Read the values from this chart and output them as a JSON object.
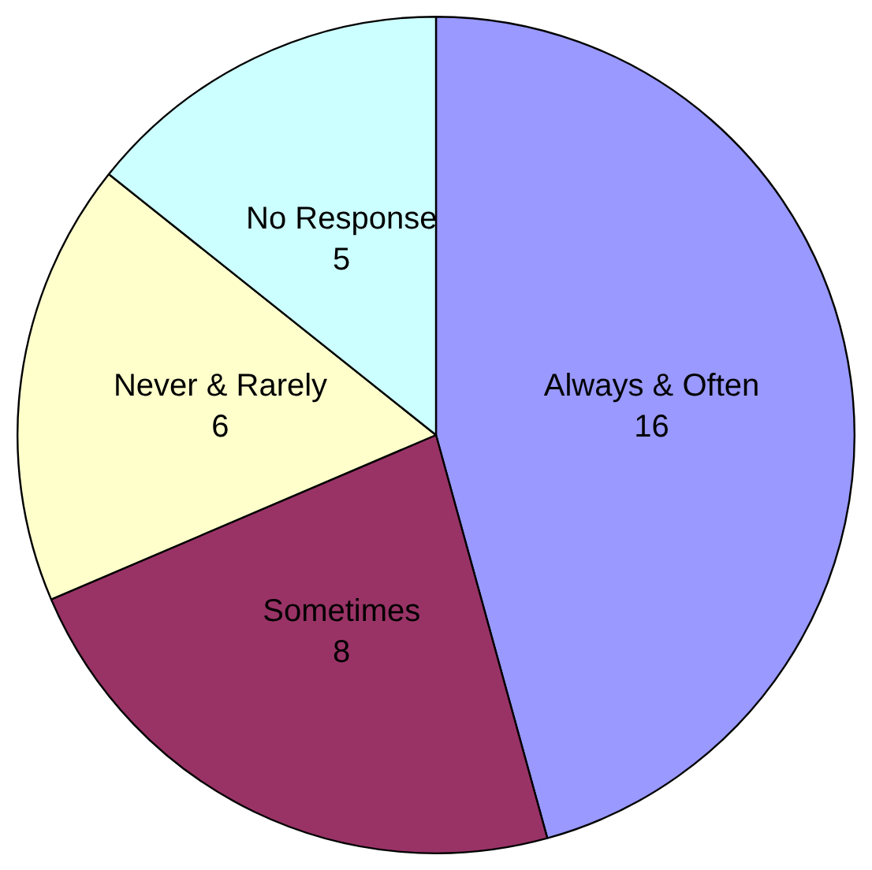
{
  "chart_data": {
    "type": "pie",
    "categories": [
      "Always & Often",
      "Sometimes",
      "Never & Rarely",
      "No Response"
    ],
    "values": [
      16,
      8,
      6,
      5
    ],
    "colors": [
      "#9999ff",
      "#993366",
      "#ffffcc",
      "#ccffff"
    ],
    "data_labels": true,
    "legend": false
  }
}
